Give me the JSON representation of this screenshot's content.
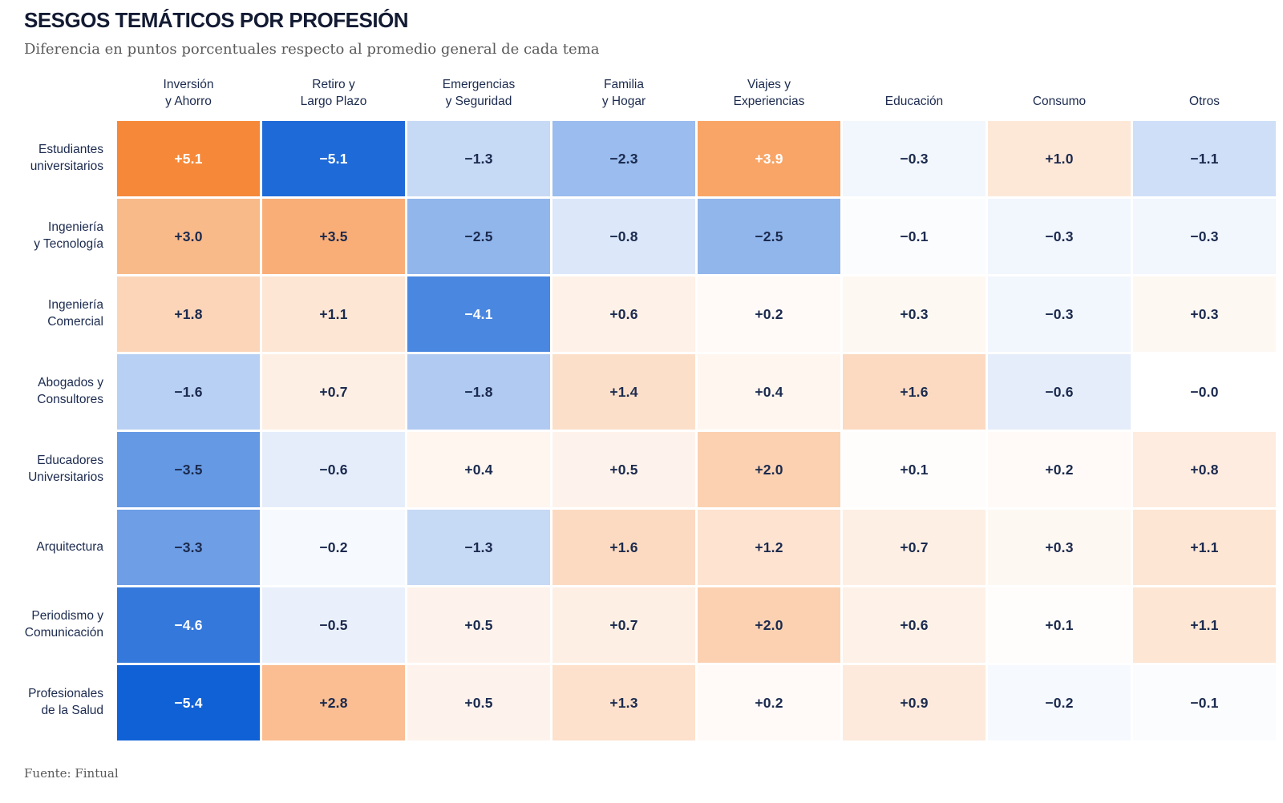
{
  "header": {
    "title": "SESGOS TEMÁTICOS POR PROFESIÓN",
    "subtitle": "Diferencia en puntos porcentuales respecto al promedio general de cada tema"
  },
  "footer": {
    "source": "Fuente: Fintual"
  },
  "colors": {
    "positive_max": "#F5822D",
    "negative_max": "#1161D6",
    "neutral": "#FFFFFF",
    "text_dark": "#1B2A4E",
    "text_light": "#FFFFFF",
    "title": "#131B33",
    "subtitle_gray": "#595959",
    "white_text_abs_threshold": 3.7,
    "scale_abs_max": 5.4
  },
  "chart_data": {
    "type": "heatmap",
    "title": "SESGOS TEMÁTICOS POR PROFESIÓN",
    "subtitle": "Diferencia en puntos porcentuales respecto al promedio general de cada tema",
    "source": "Fuente: Fintual",
    "legend": "none",
    "palette": "diverging orange (positive) / blue (negative), white at zero",
    "columns": [
      [
        "Inversión",
        "y Ahorro"
      ],
      [
        "Retiro y",
        "Largo Plazo"
      ],
      [
        "Emergencias",
        "y Seguridad"
      ],
      [
        "Familia",
        "y Hogar"
      ],
      [
        "Viajes y",
        "Experiencias"
      ],
      [
        "Educación"
      ],
      [
        "Consumo"
      ],
      [
        "Otros"
      ]
    ],
    "rows": [
      [
        "Estudiantes",
        "universitarios"
      ],
      [
        "Ingeniería",
        "y Tecnología"
      ],
      [
        "Ingeniería",
        "Comercial"
      ],
      [
        "Abogados y",
        "Consultores"
      ],
      [
        "Educadores",
        "Universitarios"
      ],
      [
        "Arquitectura"
      ],
      [
        "Periodismo y",
        "Comunicación"
      ],
      [
        "Profesionales",
        "de la Salud"
      ]
    ],
    "values": [
      [
        5.1,
        -5.1,
        -1.3,
        -2.3,
        3.9,
        -0.3,
        1.0,
        -1.1
      ],
      [
        3.0,
        3.5,
        -2.5,
        -0.8,
        -2.5,
        -0.1,
        -0.3,
        -0.3
      ],
      [
        1.8,
        1.1,
        -4.1,
        0.6,
        0.2,
        0.3,
        -0.3,
        0.3
      ],
      [
        -1.6,
        0.7,
        -1.8,
        1.4,
        0.4,
        1.6,
        -0.6,
        -0.0
      ],
      [
        -3.5,
        -0.6,
        0.4,
        0.5,
        2.0,
        0.1,
        0.2,
        0.8
      ],
      [
        -3.3,
        -0.2,
        -1.3,
        1.6,
        1.2,
        0.7,
        0.3,
        1.1
      ],
      [
        -4.6,
        -0.5,
        0.5,
        0.7,
        2.0,
        0.6,
        0.1,
        1.1
      ],
      [
        -5.4,
        2.8,
        0.5,
        1.3,
        0.2,
        0.9,
        -0.2,
        -0.1
      ]
    ],
    "display": [
      [
        "+5.1",
        "−5.1",
        "−1.3",
        "−2.3",
        "+3.9",
        "−0.3",
        "+1.0",
        "−1.1"
      ],
      [
        "+3.0",
        "+3.5",
        "−2.5",
        "−0.8",
        "−2.5",
        "−0.1",
        "−0.3",
        "−0.3"
      ],
      [
        "+1.8",
        "+1.1",
        "−4.1",
        "+0.6",
        "+0.2",
        "+0.3",
        "−0.3",
        "+0.3"
      ],
      [
        "−1.6",
        "+0.7",
        "−1.8",
        "+1.4",
        "+0.4",
        "+1.6",
        "−0.6",
        "−0.0"
      ],
      [
        "−3.5",
        "−0.6",
        "+0.4",
        "+0.5",
        "+2.0",
        "+0.1",
        "+0.2",
        "+0.8"
      ],
      [
        "−3.3",
        "−0.2",
        "−1.3",
        "+1.6",
        "+1.2",
        "+0.7",
        "+0.3",
        "+1.1"
      ],
      [
        "−4.6",
        "−0.5",
        "+0.5",
        "+0.7",
        "+2.0",
        "+0.6",
        "+0.1",
        "+1.1"
      ],
      [
        "−5.4",
        "+2.8",
        "+0.5",
        "+1.3",
        "+0.2",
        "+0.9",
        "−0.2",
        "−0.1"
      ]
    ]
  }
}
